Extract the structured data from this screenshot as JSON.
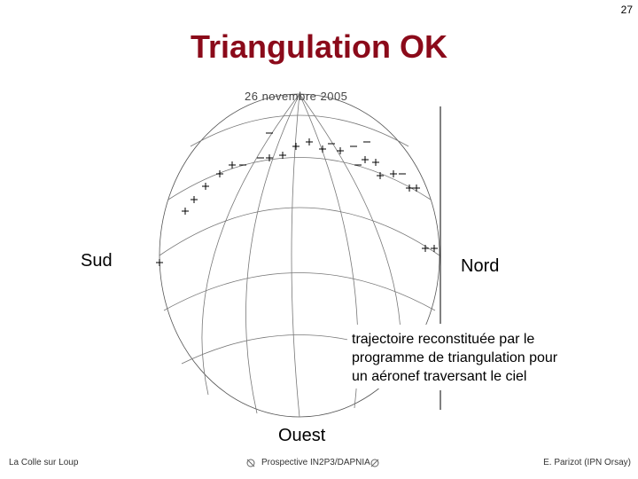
{
  "slide": {
    "page_number": "27",
    "title": "Triangulation OK",
    "figure": {
      "caption": "26 novembre 2005",
      "left_label": "Sud",
      "right_label": "Nord",
      "bottom_label": "Ouest"
    },
    "annotation": [
      "trajectoire reconstituée par le",
      "programme de triangulation pour",
      "un aéronef traversant le ciel"
    ],
    "footer": {
      "left": "La Colle sur Loup",
      "center": "Prospective IN2P3/DAPNIA",
      "right": "E. Parizot (IPN Orsay)"
    }
  }
}
